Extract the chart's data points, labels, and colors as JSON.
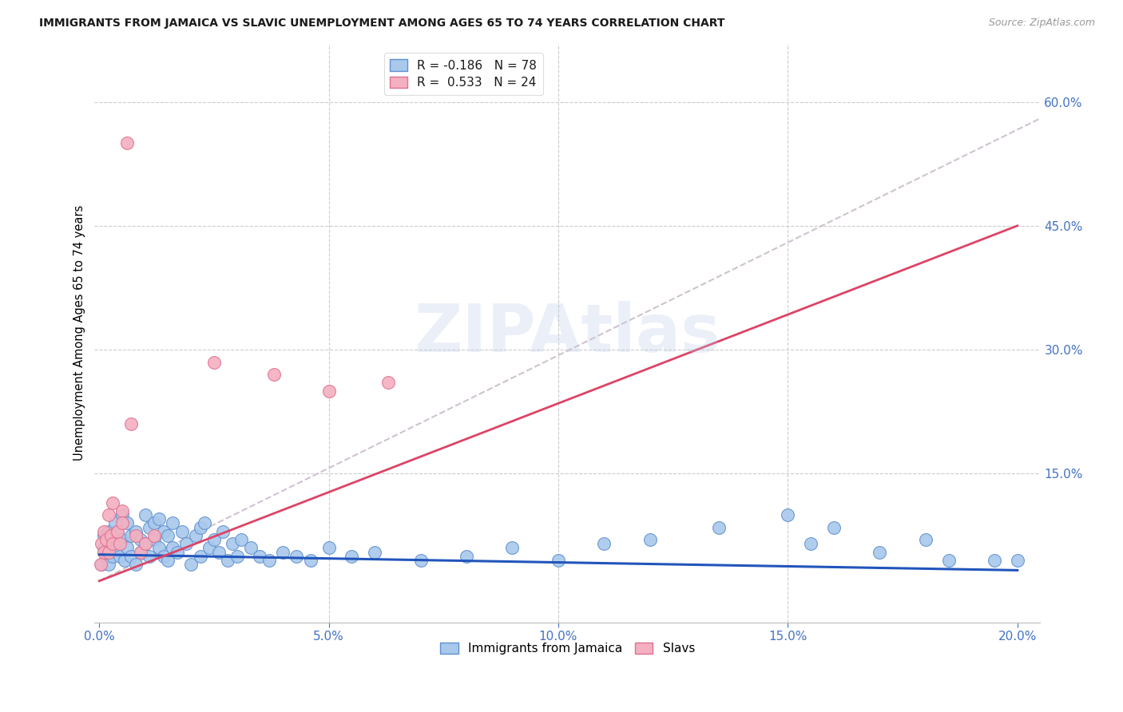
{
  "title": "IMMIGRANTS FROM JAMAICA VS SLAVIC UNEMPLOYMENT AMONG AGES 65 TO 74 YEARS CORRELATION CHART",
  "source": "Source: ZipAtlas.com",
  "ylabel": "Unemployment Among Ages 65 to 74 years",
  "xlim": [
    -0.001,
    0.205
  ],
  "ylim": [
    -0.03,
    0.67
  ],
  "xticks": [
    0.0,
    0.05,
    0.1,
    0.15,
    0.2
  ],
  "xtick_labels": [
    "0.0%",
    "5.0%",
    "10.0%",
    "15.0%",
    "20.0%"
  ],
  "yticks": [
    0.15,
    0.3,
    0.45,
    0.6
  ],
  "ytick_labels": [
    "15.0%",
    "30.0%",
    "45.0%",
    "60.0%"
  ],
  "blue_color": "#a8c8ec",
  "pink_color": "#f4b0c0",
  "blue_edge": "#6090d0",
  "pink_edge": "#e07090",
  "blue_R": -0.186,
  "blue_N": 78,
  "pink_R": 0.533,
  "pink_N": 24,
  "axis_color": "#4472c4",
  "watermark": "ZIPAtlas",
  "blue_line_color": "#2255bb",
  "pink_line_color": "#dd4466",
  "dash_line_color": "#c8b8c8",
  "blue_scatter_x": [
    0.0005,
    0.001,
    0.001,
    0.0015,
    0.002,
    0.002,
    0.0025,
    0.003,
    0.003,
    0.0035,
    0.004,
    0.004,
    0.0045,
    0.005,
    0.005,
    0.0055,
    0.006,
    0.006,
    0.007,
    0.007,
    0.008,
    0.008,
    0.009,
    0.009,
    0.01,
    0.01,
    0.011,
    0.011,
    0.012,
    0.012,
    0.013,
    0.013,
    0.014,
    0.014,
    0.015,
    0.015,
    0.016,
    0.016,
    0.017,
    0.018,
    0.019,
    0.02,
    0.021,
    0.022,
    0.022,
    0.023,
    0.024,
    0.025,
    0.026,
    0.027,
    0.028,
    0.029,
    0.03,
    0.031,
    0.033,
    0.035,
    0.037,
    0.04,
    0.043,
    0.046,
    0.05,
    0.055,
    0.06,
    0.07,
    0.08,
    0.09,
    0.1,
    0.11,
    0.12,
    0.135,
    0.15,
    0.155,
    0.16,
    0.17,
    0.18,
    0.185,
    0.195,
    0.2
  ],
  "blue_scatter_y": [
    0.04,
    0.06,
    0.075,
    0.05,
    0.08,
    0.04,
    0.065,
    0.07,
    0.05,
    0.09,
    0.06,
    0.08,
    0.05,
    0.07,
    0.1,
    0.045,
    0.09,
    0.06,
    0.075,
    0.05,
    0.08,
    0.04,
    0.07,
    0.055,
    0.1,
    0.065,
    0.085,
    0.05,
    0.09,
    0.07,
    0.06,
    0.095,
    0.05,
    0.08,
    0.075,
    0.045,
    0.09,
    0.06,
    0.055,
    0.08,
    0.065,
    0.04,
    0.075,
    0.085,
    0.05,
    0.09,
    0.06,
    0.07,
    0.055,
    0.08,
    0.045,
    0.065,
    0.05,
    0.07,
    0.06,
    0.05,
    0.045,
    0.055,
    0.05,
    0.045,
    0.06,
    0.05,
    0.055,
    0.045,
    0.05,
    0.06,
    0.045,
    0.065,
    0.07,
    0.085,
    0.1,
    0.065,
    0.085,
    0.055,
    0.07,
    0.045,
    0.045,
    0.045
  ],
  "pink_scatter_x": [
    0.0003,
    0.0005,
    0.001,
    0.001,
    0.0015,
    0.002,
    0.002,
    0.0025,
    0.003,
    0.003,
    0.004,
    0.0045,
    0.005,
    0.005,
    0.006,
    0.007,
    0.008,
    0.009,
    0.01,
    0.012,
    0.025,
    0.038,
    0.05,
    0.063
  ],
  "pink_scatter_y": [
    0.04,
    0.065,
    0.055,
    0.08,
    0.07,
    0.055,
    0.1,
    0.075,
    0.065,
    0.115,
    0.08,
    0.065,
    0.105,
    0.09,
    0.55,
    0.21,
    0.075,
    0.055,
    0.065,
    0.075,
    0.285,
    0.27,
    0.25,
    0.26
  ]
}
